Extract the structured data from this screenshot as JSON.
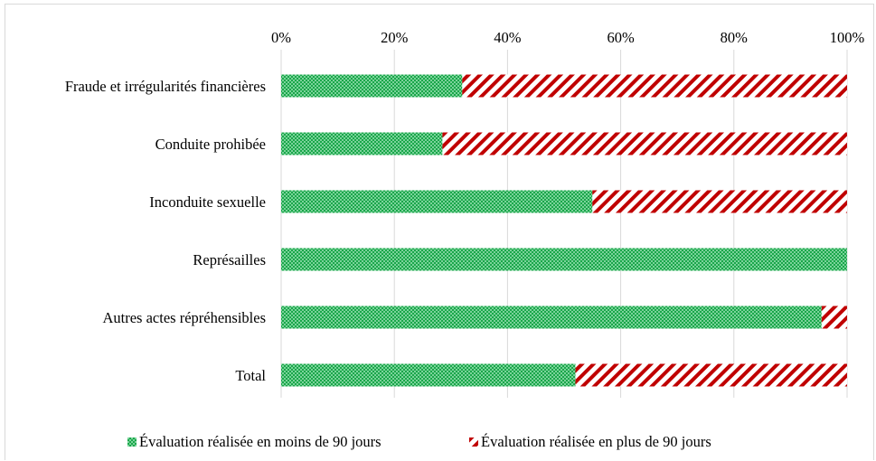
{
  "chart_data": {
    "type": "bar",
    "orientation": "horizontal",
    "stacked": true,
    "normalized_percent": true,
    "categories": [
      "Fraude et irrégularités financières",
      "Conduite prohibée",
      "Inconduite sexuelle",
      "Représailles",
      "Autres actes répréhensibles",
      "Total"
    ],
    "series": [
      {
        "name": "Évaluation réalisée en moins de 90 jours",
        "values": [
          32,
          28.5,
          55,
          100,
          95.5,
          52
        ],
        "color": "#1aa64a",
        "pattern": "checker"
      },
      {
        "name": "Évaluation réalisée en plus de 90 jours",
        "values": [
          68,
          71.5,
          45,
          0,
          4.5,
          48
        ],
        "color": "#c00000",
        "pattern": "diagonal-stripes"
      }
    ],
    "xlim": [
      0,
      100
    ],
    "xticks": [
      "0%",
      "20%",
      "40%",
      "60%",
      "80%",
      "100%"
    ],
    "grid": true,
    "xaxis_position": "top",
    "legend": "bottom"
  }
}
